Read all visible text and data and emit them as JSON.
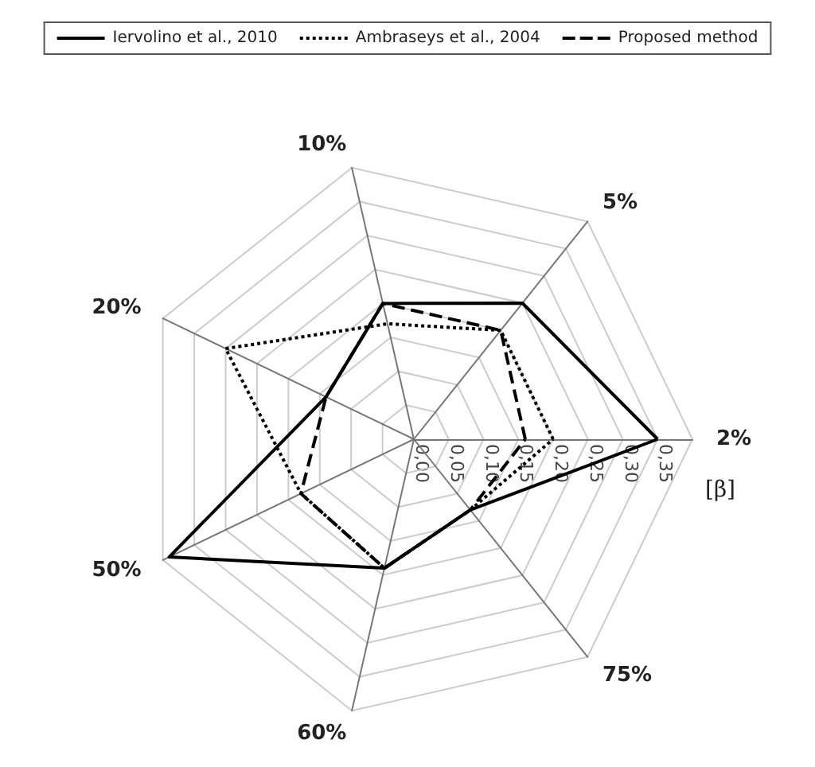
{
  "chart_data": {
    "type": "radar",
    "ylabel": "[β]",
    "categories": [
      "10%",
      "5%",
      "2%",
      "75%",
      "60%",
      "50%",
      "20%"
    ],
    "series": [
      {
        "name": "Iervolino et al., 2010",
        "color": "#000000",
        "line_style": "solid",
        "values": [
          0.2,
          0.25,
          0.35,
          0.13,
          0.19,
          0.39,
          0.14
        ]
      },
      {
        "name": "Ambraseys et al., 2004",
        "color": "#000000",
        "line_style": "dotted",
        "values": [
          0.17,
          0.2,
          0.2,
          0.13,
          0.19,
          0.18,
          0.3
        ]
      },
      {
        "name": "Proposed method",
        "color": "#000000",
        "line_style": "dashed",
        "values": [
          0.2,
          0.2,
          0.16,
          0.13,
          0.19,
          0.18,
          0.14
        ]
      }
    ],
    "ylim": [
      0,
      0.4
    ],
    "yticks": [
      {
        "value": 0,
        "label": "0,00"
      },
      {
        "value": 0.05,
        "label": "0,05"
      },
      {
        "value": 0.1,
        "label": "0,10"
      },
      {
        "value": 0.15,
        "label": "0,15"
      },
      {
        "value": 0.2,
        "label": "0,20"
      },
      {
        "value": 0.25,
        "label": "0,25"
      },
      {
        "value": 0.3,
        "label": "0,30"
      },
      {
        "value": 0.35,
        "label": "0,35"
      }
    ],
    "grid": true,
    "legend": "top",
    "marker": "none"
  }
}
